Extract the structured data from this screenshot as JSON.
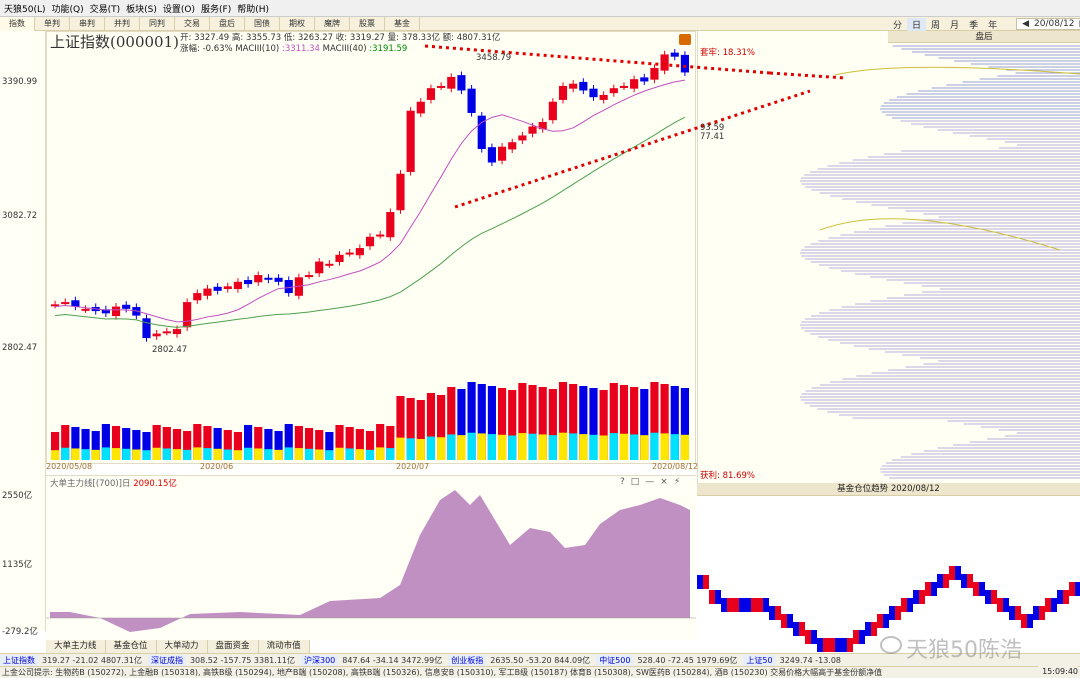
{
  "menu": [
    "天狼50(L)",
    "功能(Q)",
    "交易(T)",
    "板块(S)",
    "设置(O)",
    "服务(F)",
    "帮助(H)"
  ],
  "tabs": [
    "指数",
    "单判",
    "串判",
    "并判",
    "同判",
    "交易",
    "盘后",
    "国债",
    "期权",
    "魔牌",
    "股票",
    "基金"
  ],
  "period": {
    "items": [
      "分",
      "日",
      "周",
      "月",
      "季",
      "年"
    ],
    "selected": "日",
    "date": "20/08/12"
  },
  "stock": {
    "name": "上证指数(000001)"
  },
  "ohlc": {
    "line1": "开: 3327.49  高: 3355.73  低: 3263.27  收: 3319.27  量: 378.33亿  额: 4807.31亿",
    "change": "涨幅: -0.63%",
    "ma10_label": "MACIII(10)",
    "ma10_value": ":3311.34",
    "ma40_label": "MACIII(40)",
    "ma40_value": ":3191.59"
  },
  "y_labels": {
    "top": "3390.99",
    "mid": "3082.72",
    "low": "2802.47",
    "sub_top": "2550亿",
    "sub_mid": "1135亿",
    "sub_low": "-279.2亿"
  },
  "annotations": {
    "high": "3458.79",
    "low": "2802.47",
    "near1": "93.59",
    "near2": "77.41"
  },
  "x_dates": [
    "2020/05/08",
    "2020/06",
    "2020/07",
    "2020/08/12"
  ],
  "right_panel": {
    "title": "盘后",
    "taolv": "套牢: 18.31%",
    "huoli": "获利: 81.69%"
  },
  "sub_chart": {
    "header": "大单主力线[(700)]日",
    "value": "2090.15亿",
    "controls": [
      "?",
      "□",
      "—",
      "×",
      "⚡"
    ]
  },
  "sub_tabs": [
    "大单主力线",
    "基金仓位",
    "大单动力",
    "盘面资金",
    "流动市值"
  ],
  "fund_panel": {
    "title": "基金仓位趋势 2020/08/12"
  },
  "quotes": [
    {
      "name": "上证指数",
      "vals": "319.27  -21.02  4807.31亿"
    },
    {
      "name": "深证成指",
      "vals": "308.52  -157.75  3381.11亿"
    },
    {
      "name": "沪深300",
      "vals": "847.64  -34.14  3472.99亿"
    },
    {
      "name": "创业板指",
      "vals": "2635.50  -53.20  844.09亿"
    },
    {
      "name": "中证500",
      "vals": "528.40  -72.45  1979.69亿"
    },
    {
      "name": "上证50",
      "vals": "3249.74  -13.08"
    }
  ],
  "ticker": "上金公司提示: 生物药B (150272), 上金融B (150318), 高铁B级 (150294), 地产B端 (150208), 高铁B端 (150326), 信息安B (150310), 军工B级 (150187) 体育B (150308), SW医药B (150284), 酒B (150230) 交易价格大幅高于基金份额净值",
  "clock": "15:09:40",
  "watermark": "天狼50陈浩",
  "colors": {
    "up": "#e8001c",
    "down": "#0000e6",
    "ma_short": "#c050c0",
    "ma_long": "#50a050",
    "trend": "#e00000",
    "vol_yellow": "#ffe600",
    "vol_cyan": "#00e0ff",
    "area": "#b67cb8",
    "bg": "#fffff4"
  }
}
